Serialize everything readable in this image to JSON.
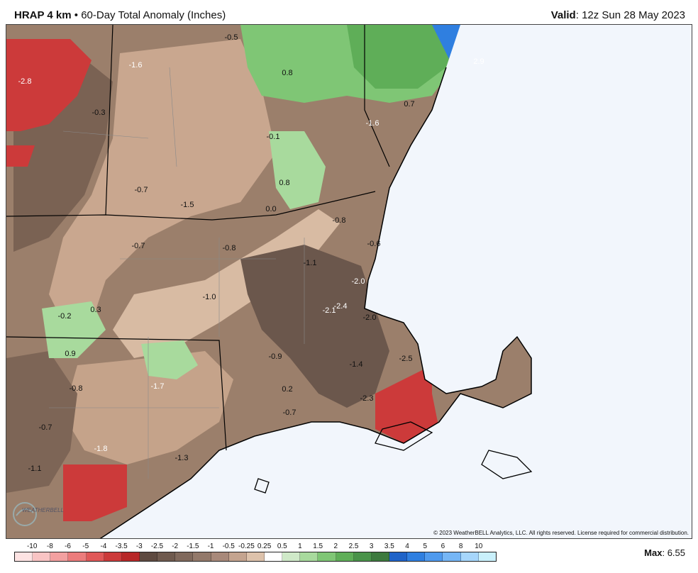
{
  "header": {
    "model": "HRAP 4 km",
    "separator": "•",
    "product": "60-Day Total Anomaly (Inches)",
    "valid_label": "Valid",
    "valid_value": "12z Sun 28 May 2023"
  },
  "map": {
    "copyright": "© 2023 WeatherBELL Analytics, LLC. All rights reserved. License required for commercial distribution.",
    "logo_text": "WEATHERBELL",
    "labels": [
      {
        "text": "-0.5"
      },
      {
        "text": "0.8"
      },
      {
        "text": "-1.6"
      },
      {
        "text": "-2.8"
      },
      {
        "text": "-0.3"
      },
      {
        "text": "2.9"
      },
      {
        "text": "0.7"
      },
      {
        "text": "-1.6"
      },
      {
        "text": "-0.1"
      },
      {
        "text": "0.8"
      },
      {
        "text": "-0.7"
      },
      {
        "text": "-1.5"
      },
      {
        "text": "0.0"
      },
      {
        "text": "-0.8"
      },
      {
        "text": "-0.7"
      },
      {
        "text": "-0.8"
      },
      {
        "text": "-0.6"
      },
      {
        "text": "-1.1"
      },
      {
        "text": "-2.0"
      },
      {
        "text": "-1.0"
      },
      {
        "text": "-0.2"
      },
      {
        "text": "0.3"
      },
      {
        "text": "-2.1"
      },
      {
        "text": "-2.4"
      },
      {
        "text": "-2.0"
      },
      {
        "text": "0.9"
      },
      {
        "text": "-0.9"
      },
      {
        "text": "-2.5"
      },
      {
        "text": "-1.4"
      },
      {
        "text": "-0.8"
      },
      {
        "text": "-1.7"
      },
      {
        "text": "0.2"
      },
      {
        "text": "-2.3"
      },
      {
        "text": "-0.7"
      },
      {
        "text": "-0.7"
      },
      {
        "text": "-1.8"
      },
      {
        "text": "-1.3"
      },
      {
        "text": "-1.1"
      }
    ]
  },
  "legend": {
    "ticks": [
      "-10",
      "-8",
      "-6",
      "-5",
      "-4",
      "-3.5",
      "-3",
      "-2.5",
      "-2",
      "-1.5",
      "-1",
      "-0.5",
      "-0.25",
      "0.25",
      "0.5",
      "1",
      "1.5",
      "2",
      "2.5",
      "3",
      "3.5",
      "4",
      "5",
      "6",
      "8",
      "10"
    ],
    "colors": [
      "#fde3e3",
      "#f9c4c4",
      "#f3a0a0",
      "#ec7c7c",
      "#e05858",
      "#cc3a3a",
      "#b82828",
      "#5e4a40",
      "#6f5a4e",
      "#80695c",
      "#93796a",
      "#a8897a",
      "#c4a48f",
      "#ddc2ab",
      "#ffffff",
      "#cfe9c8",
      "#a8da9d",
      "#7fc675",
      "#5fae58",
      "#4a934a",
      "#3d7a3e",
      "#1f63c8",
      "#2f7fe0",
      "#4f9aee",
      "#76b6f5",
      "#a6d6fb",
      "#c9f0fb"
    ],
    "max_label": "Max",
    "max_value": "6.55"
  }
}
